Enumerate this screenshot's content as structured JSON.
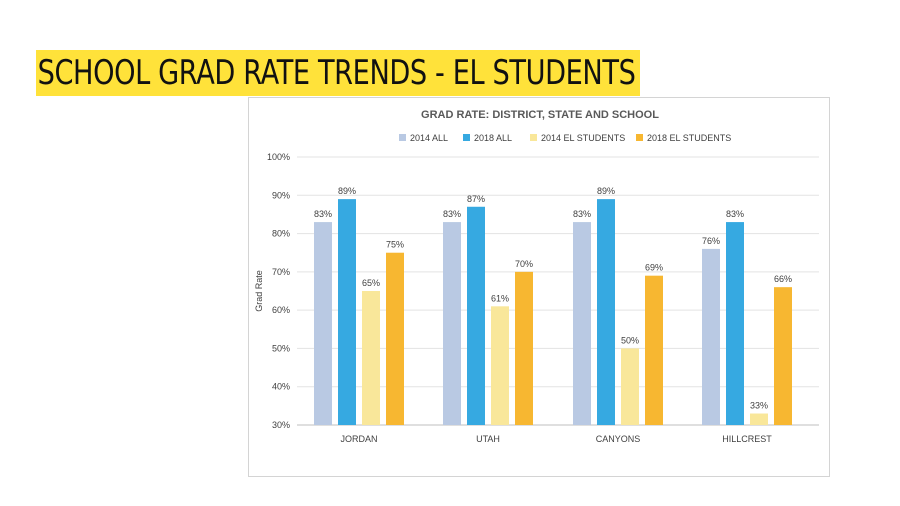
{
  "slide": {
    "title": "SCHOOL GRAD RATE TRENDS - EL STUDENTS"
  },
  "chart_data": {
    "type": "bar",
    "title": "GRAD RATE: DISTRICT, STATE AND SCHOOL",
    "xlabel": "",
    "ylabel": "Grad Rate",
    "ylim": [
      30,
      100
    ],
    "yticks": [
      30,
      40,
      50,
      60,
      70,
      80,
      90,
      100
    ],
    "ytick_labels": [
      "30%",
      "40%",
      "50%",
      "60%",
      "70%",
      "80%",
      "90%",
      "100%"
    ],
    "grid": true,
    "legend": "top",
    "categories": [
      "JORDAN",
      "UTAH",
      "CANYONS",
      "HILLCREST"
    ],
    "series": [
      {
        "name": "2014 ALL",
        "color": "#b9c9e3",
        "values": [
          83,
          83,
          83,
          76
        ],
        "labels": [
          "83%",
          "83%",
          "83%",
          "76%"
        ]
      },
      {
        "name": "2018 ALL",
        "color": "#36a9e1",
        "values": [
          89,
          87,
          89,
          83
        ],
        "labels": [
          "89%",
          "87%",
          "89%",
          "83%"
        ]
      },
      {
        "name": "2014 EL STUDENTS",
        "color": "#f9e79a",
        "values": [
          65,
          61,
          50,
          33
        ],
        "labels": [
          "65%",
          "61%",
          "50%",
          "33%"
        ]
      },
      {
        "name": "2018 EL STUDENTS",
        "color": "#f7b731",
        "values": [
          75,
          70,
          69,
          66
        ],
        "labels": [
          "75%",
          "70%",
          "69%",
          "66%"
        ]
      }
    ]
  }
}
